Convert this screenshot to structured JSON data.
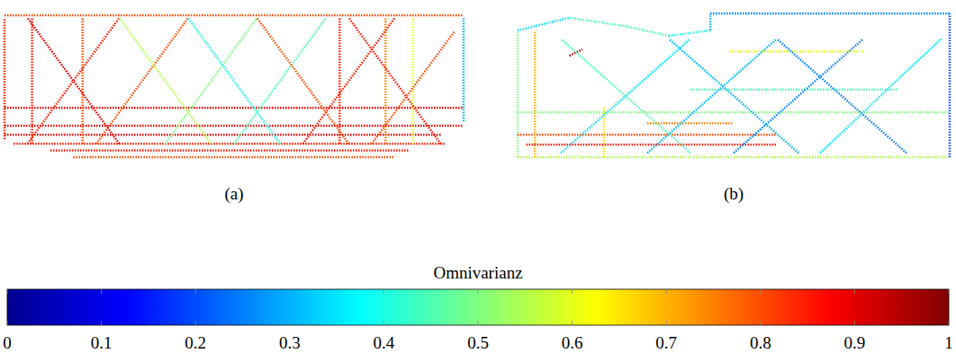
{
  "chart_data": [
    {
      "type": "point_cloud",
      "title": "(a)",
      "xlim": [
        0,
        100
      ],
      "ylim": [
        0,
        32
      ],
      "tick_labels": false,
      "segments": [
        {
          "x": [
            0,
            100
          ],
          "y": [
            31.6,
            31.6
          ],
          "value": 0.8
        },
        {
          "x": [
            2,
            96
          ],
          "y": [
            3,
            3
          ],
          "value": 0.85
        },
        {
          "x": [
            15,
            85
          ],
          "y": [
            0,
            0
          ],
          "value": 0.8
        },
        {
          "x": [
            10,
            88
          ],
          "y": [
            1.5,
            1.5
          ],
          "value": 0.85
        },
        {
          "x": [
            0,
            95
          ],
          "y": [
            5,
            5
          ],
          "value": 0.9
        },
        {
          "x": [
            0,
            0
          ],
          "y": [
            4,
            31
          ],
          "value": 0.85
        },
        {
          "x": [
            100,
            100
          ],
          "y": [
            8,
            31
          ],
          "value": 0.3
        },
        {
          "x": [
            0,
            100
          ],
          "y": [
            11,
            11
          ],
          "value": 0.9
        },
        {
          "x": [
            0,
            100
          ],
          "y": [
            7,
            7
          ],
          "value": 0.9
        },
        {
          "x": [
            6,
            6
          ],
          "y": [
            3,
            31
          ],
          "value": 0.85
        },
        {
          "x": [
            17,
            17
          ],
          "y": [
            3,
            31
          ],
          "value": 0.8
        },
        {
          "x": [
            73,
            73
          ],
          "y": [
            3,
            31
          ],
          "value": 0.85
        },
        {
          "x": [
            83,
            83
          ],
          "y": [
            3,
            31
          ],
          "value": 0.75
        },
        {
          "x": [
            89,
            89
          ],
          "y": [
            3,
            31
          ],
          "value": 0.6
        },
        {
          "x": [
            5,
            25
          ],
          "y": [
            3,
            31
          ],
          "value": 0.85
        },
        {
          "x": [
            20,
            40
          ],
          "y": [
            3,
            31
          ],
          "value": 0.8
        },
        {
          "x": [
            35,
            55
          ],
          "y": [
            3,
            31
          ],
          "value": 0.5
        },
        {
          "x": [
            50,
            70
          ],
          "y": [
            3,
            31
          ],
          "value": 0.45
        },
        {
          "x": [
            65,
            85
          ],
          "y": [
            3,
            31
          ],
          "value": 0.85
        },
        {
          "x": [
            80,
            98
          ],
          "y": [
            3,
            28
          ],
          "value": 0.8
        },
        {
          "x": [
            25,
            5
          ],
          "y": [
            3,
            31
          ],
          "value": 0.9
        },
        {
          "x": [
            45,
            25
          ],
          "y": [
            3,
            31
          ],
          "value": 0.55
        },
        {
          "x": [
            60,
            40
          ],
          "y": [
            3,
            31
          ],
          "value": 0.4
        },
        {
          "x": [
            75,
            55
          ],
          "y": [
            3,
            31
          ],
          "value": 0.8
        },
        {
          "x": [
            95,
            75
          ],
          "y": [
            3,
            31
          ],
          "value": 0.85
        }
      ]
    },
    {
      "type": "point_cloud",
      "title": "(b)",
      "xlim": [
        0,
        100
      ],
      "ylim": [
        0,
        34
      ],
      "tick_labels": false,
      "segments": [
        {
          "x": [
            0,
            0
          ],
          "y": [
            0,
            30
          ],
          "value": 0.5
        },
        {
          "x": [
            0,
            100
          ],
          "y": [
            0,
            0
          ],
          "value": 0.55
        },
        {
          "x": [
            100,
            100
          ],
          "y": [
            0,
            34
          ],
          "value": 0.2
        },
        {
          "x": [
            44.6,
            100
          ],
          "y": [
            34,
            34
          ],
          "value": 0.25
        },
        {
          "x": [
            0,
            12
          ],
          "y": [
            30,
            33
          ],
          "value": 0.35
        },
        {
          "x": [
            12,
            25
          ],
          "y": [
            33,
            31
          ],
          "value": 0.45
        },
        {
          "x": [
            25,
            35
          ],
          "y": [
            31,
            28.7
          ],
          "value": 0.45
        },
        {
          "x": [
            35,
            44.6
          ],
          "y": [
            28.7,
            30
          ],
          "value": 0.4
        },
        {
          "x": [
            44.6,
            44.6
          ],
          "y": [
            30,
            34
          ],
          "value": 0.3
        },
        {
          "x": [
            0,
            100
          ],
          "y": [
            10.6,
            10.6
          ],
          "value": 0.5
        },
        {
          "x": [
            0,
            60
          ],
          "y": [
            5.3,
            5.3
          ],
          "value": 0.8
        },
        {
          "x": [
            40,
            88
          ],
          "y": [
            16,
            16
          ],
          "value": 0.45
        },
        {
          "x": [
            49,
            80
          ],
          "y": [
            25,
            25
          ],
          "value": 0.6
        },
        {
          "x": [
            4,
            4
          ],
          "y": [
            0,
            30
          ],
          "value": 0.7
        },
        {
          "x": [
            20,
            20
          ],
          "y": [
            0,
            12
          ],
          "value": 0.65
        },
        {
          "x": [
            12,
            15
          ],
          "y": [
            24,
            25.5
          ],
          "value": 0.95
        },
        {
          "x": [
            2,
            60
          ],
          "y": [
            3,
            3
          ],
          "value": 0.85
        },
        {
          "x": [
            30,
            50
          ],
          "y": [
            8,
            8
          ],
          "value": 0.75
        },
        {
          "x": [
            10,
            40
          ],
          "y": [
            1,
            28
          ],
          "value": 0.35
        },
        {
          "x": [
            30,
            60
          ],
          "y": [
            1,
            28
          ],
          "value": 0.3
        },
        {
          "x": [
            50,
            80
          ],
          "y": [
            1,
            28
          ],
          "value": 0.25
        },
        {
          "x": [
            70,
            98
          ],
          "y": [
            1,
            28
          ],
          "value": 0.35
        },
        {
          "x": [
            40,
            10
          ],
          "y": [
            1,
            28
          ],
          "value": 0.45
        },
        {
          "x": [
            65,
            35
          ],
          "y": [
            1,
            28
          ],
          "value": 0.3
        },
        {
          "x": [
            90,
            60
          ],
          "y": [
            1,
            28
          ],
          "value": 0.25
        }
      ]
    }
  ],
  "colorbar": {
    "title": "Omnivarianz",
    "range": [
      0,
      1
    ],
    "ticks": [
      0,
      0.1,
      0.2,
      0.3,
      0.4,
      0.5,
      0.6,
      0.7,
      0.8,
      0.9,
      1
    ]
  }
}
